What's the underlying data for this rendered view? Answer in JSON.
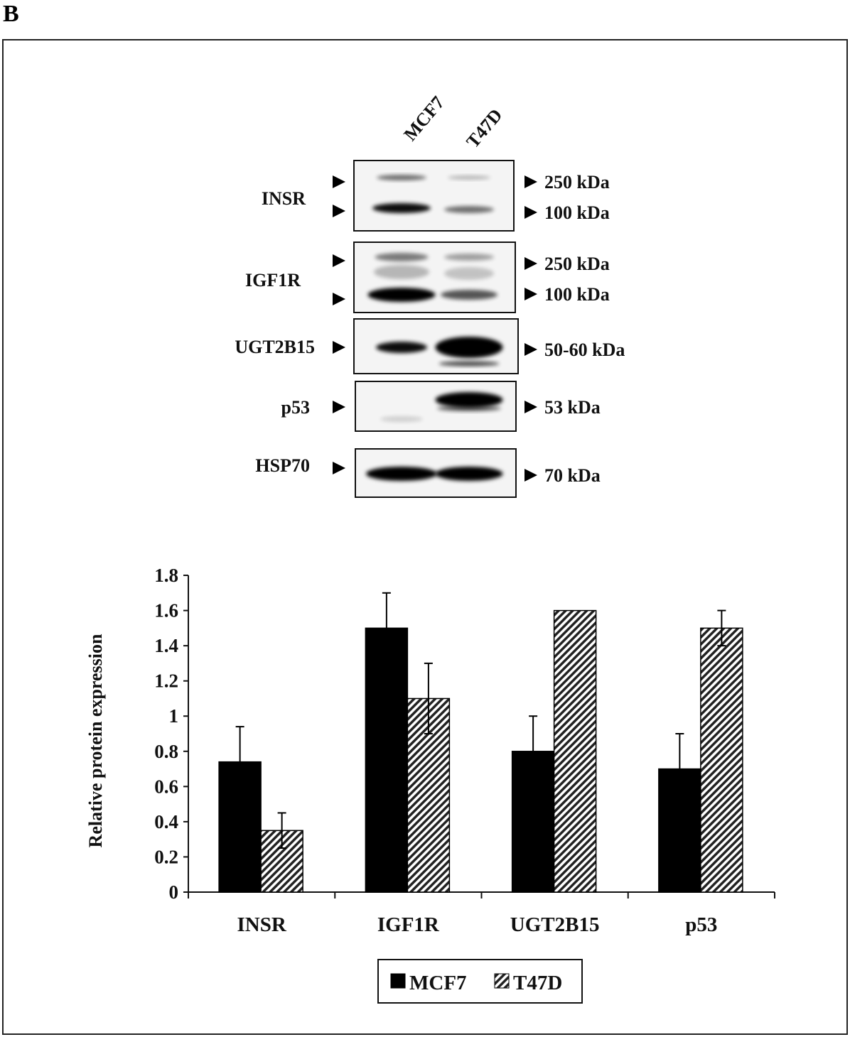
{
  "panel_label": "B",
  "blot": {
    "lanes": [
      "MCF7",
      "T47D"
    ],
    "rows": [
      {
        "protein": "INSR",
        "markers": [
          "250 kDa",
          "100 kDa"
        ]
      },
      {
        "protein": "IGF1R",
        "markers": [
          "250 kDa",
          "100 kDa"
        ]
      },
      {
        "protein": "UGT2B15",
        "markers": [
          "50-60 kDa"
        ]
      },
      {
        "protein": "p53",
        "markers": [
          "53 kDa"
        ]
      },
      {
        "protein": "HSP70",
        "markers": [
          "70 kDa"
        ]
      }
    ]
  },
  "chart_data": {
    "type": "bar",
    "categories": [
      "INSR",
      "IGF1R",
      "UGT2B15",
      "p53"
    ],
    "ylabel": "Relative protein expression",
    "xlabel": "",
    "ylim": [
      0,
      1.8
    ],
    "yticks": [
      "0",
      "0.2",
      "0.4",
      "0.6",
      "0.8",
      "1",
      "1.2",
      "1.4",
      "1.6",
      "1.8"
    ],
    "grid": false,
    "legend_position": "bottom",
    "series": [
      {
        "name": "MCF7",
        "fill": "#000000",
        "values": [
          0.74,
          1.5,
          0.8,
          0.7
        ],
        "errors": [
          0.2,
          0.2,
          0.2,
          0.2
        ]
      },
      {
        "name": "T47D",
        "fill": "hatched",
        "values": [
          0.35,
          1.1,
          1.6,
          1.5
        ],
        "errors": [
          0.1,
          0.2,
          0,
          0.1
        ]
      }
    ]
  }
}
